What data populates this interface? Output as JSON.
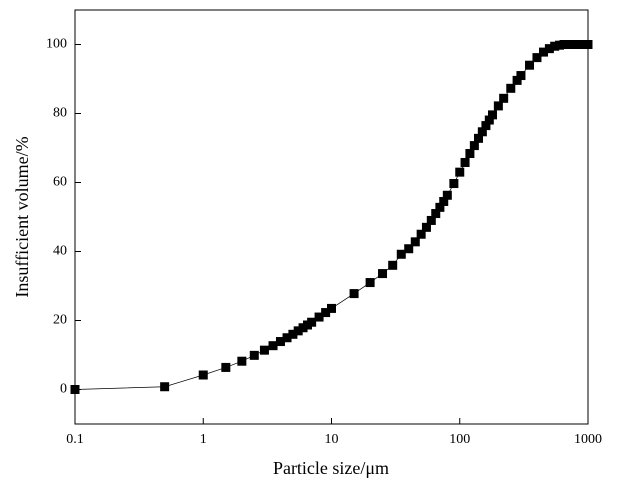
{
  "chart_data": {
    "type": "line",
    "xlabel": "Particle size/μm",
    "ylabel": "Insufficient volume/%",
    "xscale": "log",
    "xlim": [
      0.1,
      1000
    ],
    "xticks": [
      0.1,
      1,
      10,
      100,
      1000
    ],
    "ylim": [
      -10,
      110
    ],
    "yticks": [
      0,
      20,
      40,
      60,
      80,
      100
    ],
    "color": "#000000",
    "marker": "square",
    "x": [
      0.1,
      0.5,
      1,
      1.5,
      2,
      2.5,
      3,
      3.5,
      4,
      4.5,
      5,
      5.5,
      6,
      6.5,
      7,
      8,
      9,
      10,
      15,
      20,
      25,
      30,
      35,
      40,
      45,
      50,
      55,
      60,
      65,
      70,
      75,
      80,
      90,
      100,
      110,
      120,
      130,
      140,
      150,
      160,
      170,
      180,
      200,
      220,
      250,
      280,
      300,
      350,
      400,
      450,
      500,
      550,
      600,
      650,
      700,
      750,
      800,
      850,
      900,
      1000
    ],
    "values": [
      0,
      0.8,
      4.2,
      6.4,
      8.2,
      9.9,
      11.4,
      12.7,
      13.9,
      15,
      16,
      17,
      17.9,
      18.7,
      19.5,
      21,
      22.3,
      23.5,
      27.8,
      31,
      33.6,
      36,
      39.2,
      40.8,
      42.8,
      45,
      47,
      49,
      51,
      52.8,
      54.5,
      56.3,
      59.7,
      63,
      65.8,
      68.4,
      70.7,
      72.8,
      74.7,
      76.5,
      78.1,
      79.6,
      82.2,
      84.4,
      87.3,
      89.6,
      91,
      94,
      96.2,
      97.8,
      98.8,
      99.5,
      99.8,
      100,
      100,
      100,
      100,
      100,
      100,
      100
    ]
  }
}
